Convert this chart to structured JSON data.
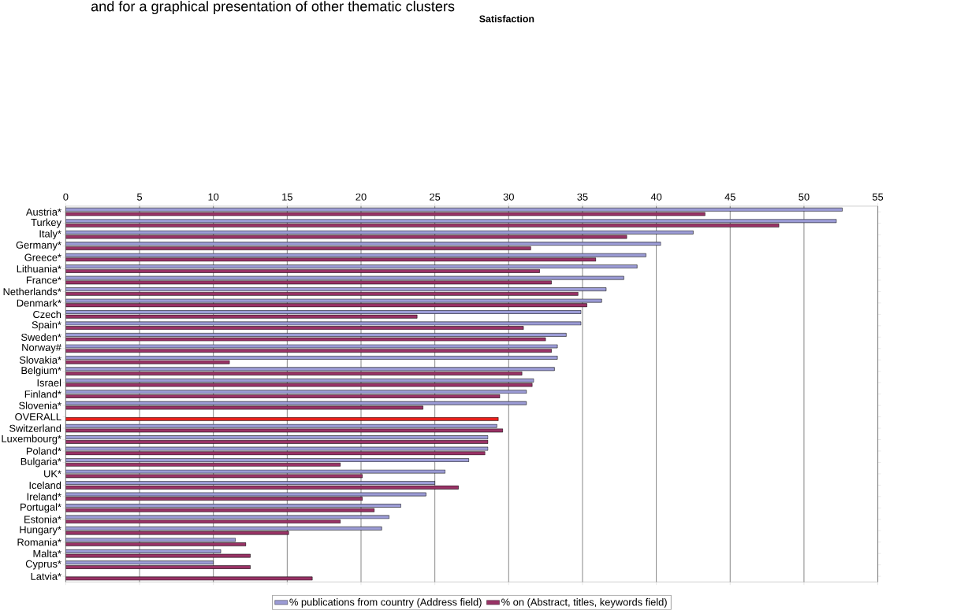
{
  "chart_data": {
    "type": "bar",
    "orientation": "horizontal",
    "title": "Satisfaction",
    "annotations": [
      "and for a graphical presentation of other thematic clusters"
    ],
    "categories": [
      "Austria*",
      "Turkey",
      "Italy*",
      "Germany*",
      "Greece*",
      "Lithuania*",
      "France*",
      "Netherlands*",
      "Denmark*",
      "Czech",
      "Spain*",
      "Sweden*",
      "Norway#",
      "Slovakia*",
      "Belgium*",
      "Israel",
      "Finland*",
      "Slovenia*",
      "OVERALL",
      "Switzerland",
      "Luxembourg*",
      "Poland*",
      "Bulgaria*",
      "UK*",
      "Iceland",
      "Ireland*",
      "Portugal*",
      "Estonia*",
      "Hungary*",
      "Romania*",
      "Malta*",
      "Cyprus*",
      "Latvia*"
    ],
    "series": [
      {
        "name": "% publications from country (Address field)",
        "color": "#9c9cd6",
        "values": [
          52.6,
          52.2,
          42.5,
          40.3,
          39.3,
          38.7,
          37.8,
          36.6,
          36.3,
          34.9,
          34.9,
          33.9,
          33.3,
          33.3,
          33.1,
          31.7,
          31.2,
          31.2,
          null,
          29.2,
          28.6,
          28.6,
          27.3,
          25.7,
          25.0,
          24.4,
          22.7,
          21.9,
          21.4,
          11.5,
          10.5,
          10.0,
          null
        ]
      },
      {
        "name": "% on (Abstract, titles, keywords field)",
        "color": "#993366",
        "colors": [
          "#993366",
          "#993366",
          "#993366",
          "#993366",
          "#993366",
          "#993366",
          "#993366",
          "#993366",
          "#993366",
          "#993366",
          "#993366",
          "#993366",
          "#993366",
          "#993366",
          "#993366",
          "#993366",
          "#993366",
          "#993366",
          "#e8201c",
          "#993366",
          "#993366",
          "#993366",
          "#993366",
          "#993366",
          "#993366",
          "#993366",
          "#993366",
          "#993366",
          "#993366",
          "#993366",
          "#993366",
          "#993366",
          "#993366"
        ],
        "values": [
          43.3,
          48.3,
          38.0,
          31.5,
          35.9,
          32.1,
          32.9,
          34.7,
          35.3,
          23.8,
          31.0,
          32.5,
          32.9,
          11.1,
          30.9,
          31.6,
          29.4,
          24.2,
          29.3,
          29.6,
          28.6,
          28.4,
          18.6,
          20.1,
          26.6,
          20.1,
          20.9,
          18.6,
          15.1,
          12.2,
          12.5,
          12.5,
          16.7
        ]
      }
    ],
    "xlim": [
      0,
      55
    ],
    "xticks": [
      0,
      5,
      10,
      15,
      20,
      25,
      30,
      35,
      40,
      45,
      50,
      55
    ],
    "grid": "x",
    "legend": "bottom"
  }
}
